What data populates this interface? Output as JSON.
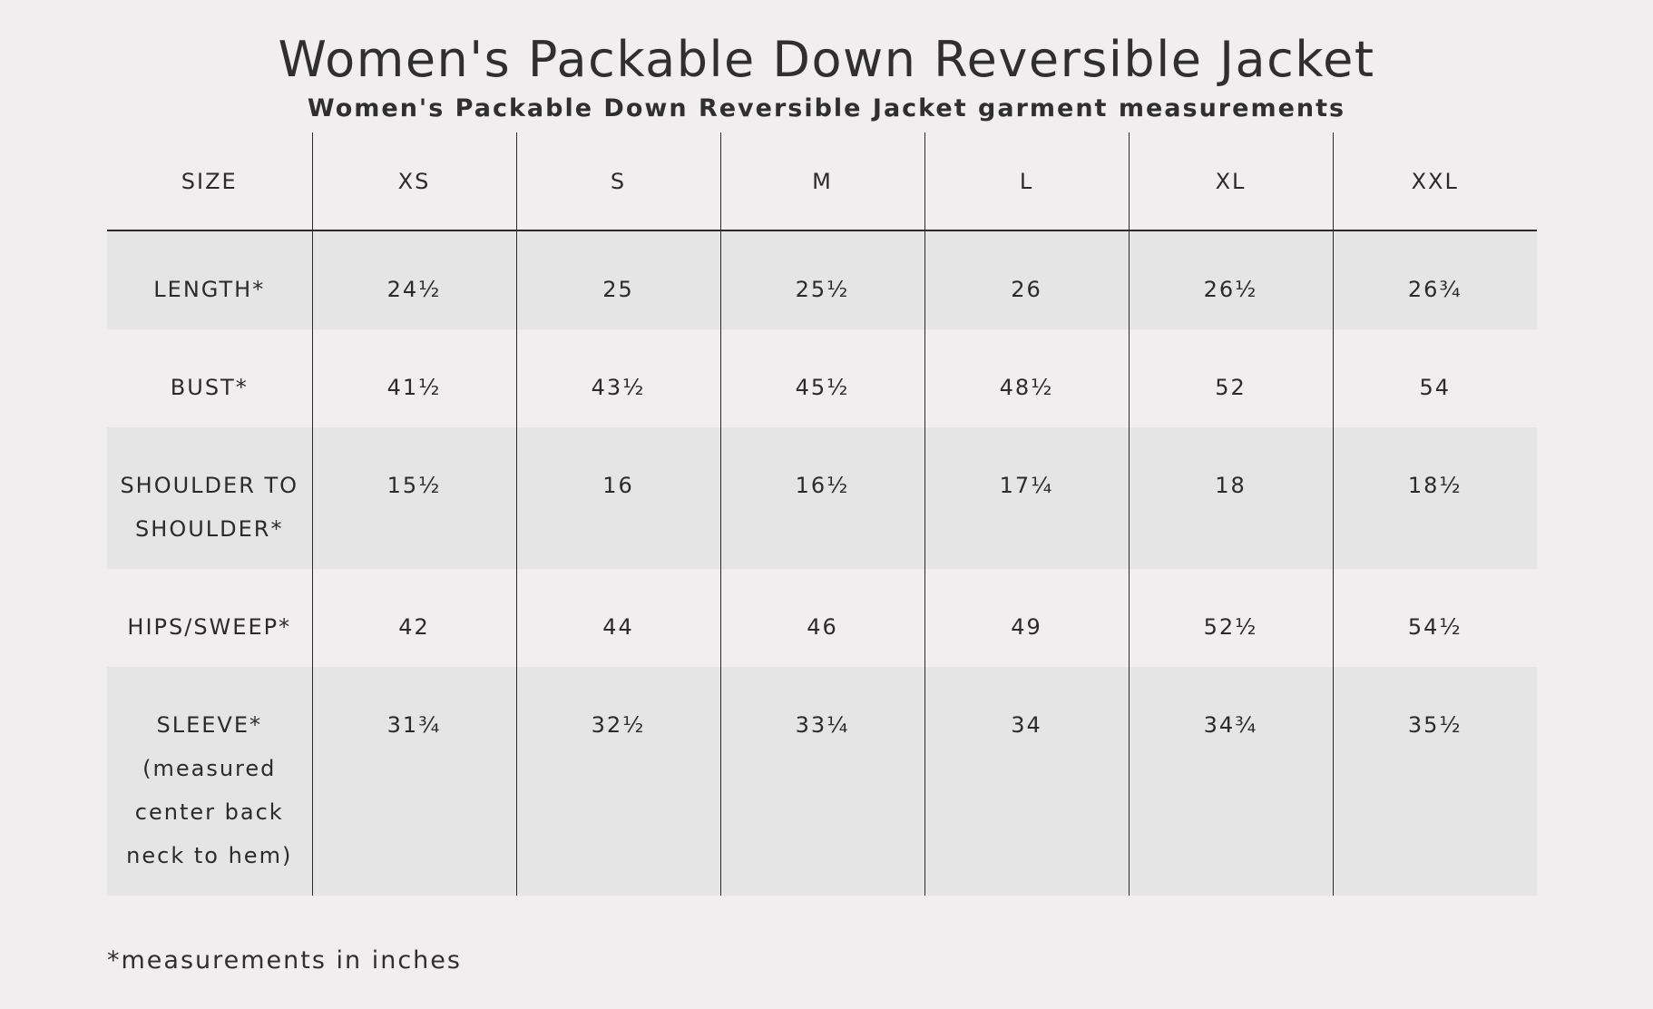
{
  "title": "Women's Packable Down Reversible Jacket",
  "subtitle": "Women's Packable Down Reversible Jacket garment measurements",
  "table": {
    "header": [
      "SIZE",
      "XS",
      "S",
      "M",
      "L",
      "XL",
      "XXL"
    ],
    "rows": [
      {
        "label": "LENGTH*",
        "values": [
          "24½",
          "25",
          "25½",
          "26",
          "26½",
          "26¾"
        ]
      },
      {
        "label": "BUST*",
        "values": [
          "41½",
          "43½",
          "45½",
          "48½",
          "52",
          "54"
        ]
      },
      {
        "label": "SHOULDER TO SHOULDER*",
        "values": [
          "15½",
          "16",
          "16½",
          "17¼",
          "18",
          "18½"
        ]
      },
      {
        "label": "HIPS/SWEEP*",
        "values": [
          "42",
          "44",
          "46",
          "49",
          "52½",
          "54½"
        ]
      },
      {
        "label": "SLEEVE* (measured center back neck to hem)",
        "values": [
          "31¾",
          "32½",
          "33¼",
          "34",
          "34¾",
          "35½"
        ]
      }
    ]
  },
  "footnote": "*measurements in inches",
  "colors": {
    "background": "#f0eeef",
    "shaded_row": "#e5e5e5",
    "text": "#2b2b2b",
    "rule": "#2b2b2b"
  }
}
